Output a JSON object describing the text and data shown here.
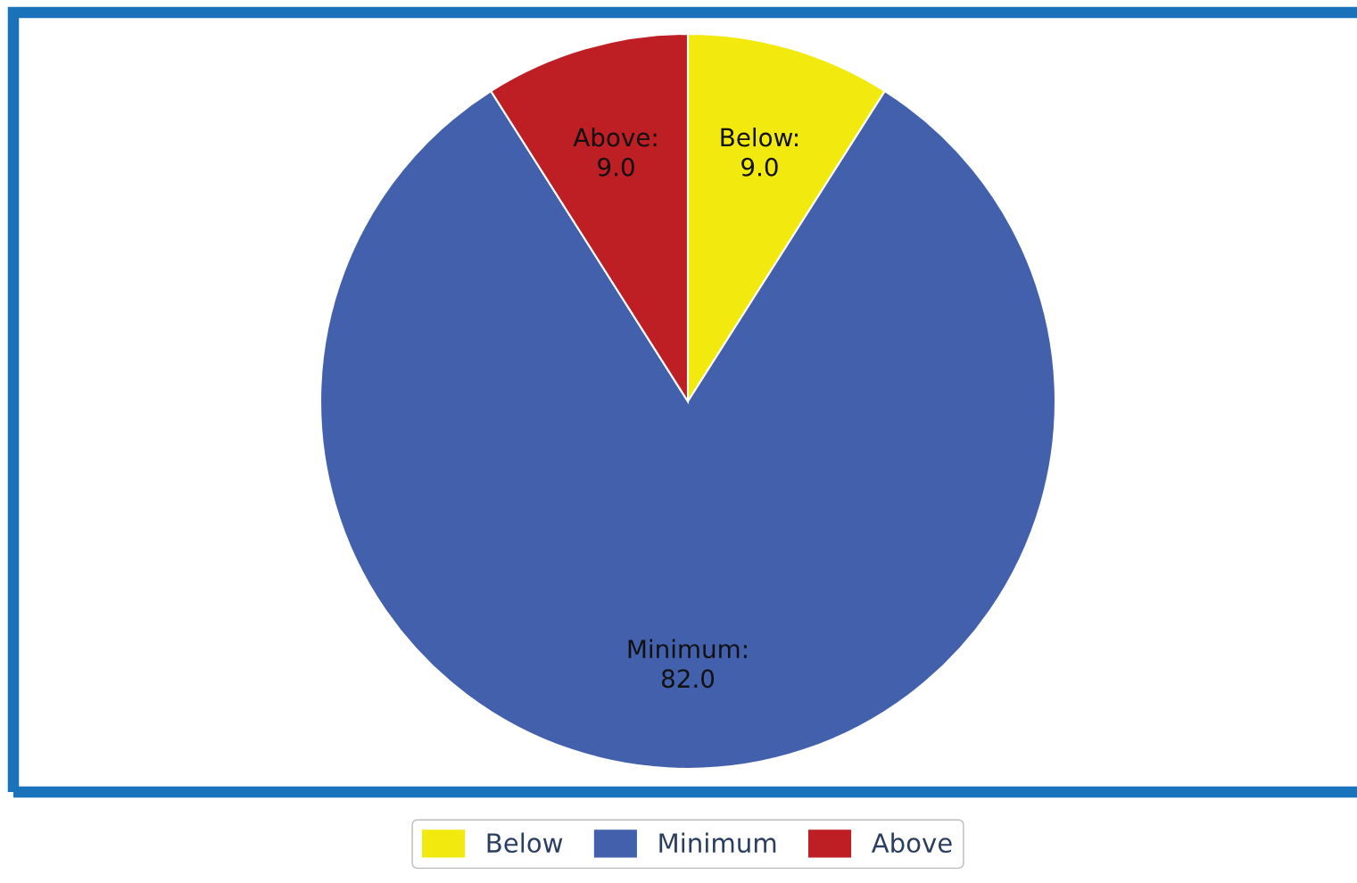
{
  "chart_data": {
    "type": "pie",
    "categories": [
      "Below",
      "Minimum",
      "Above"
    ],
    "values": [
      9.0,
      82.0,
      9.0
    ],
    "colors": [
      "#f2e90f",
      "#4360ac",
      "#bd1f25"
    ],
    "value_labels": [
      "Below:\n9.0",
      "Minimum:\n82.0",
      "Above:\n9.0"
    ],
    "legend": "bottom"
  }
}
